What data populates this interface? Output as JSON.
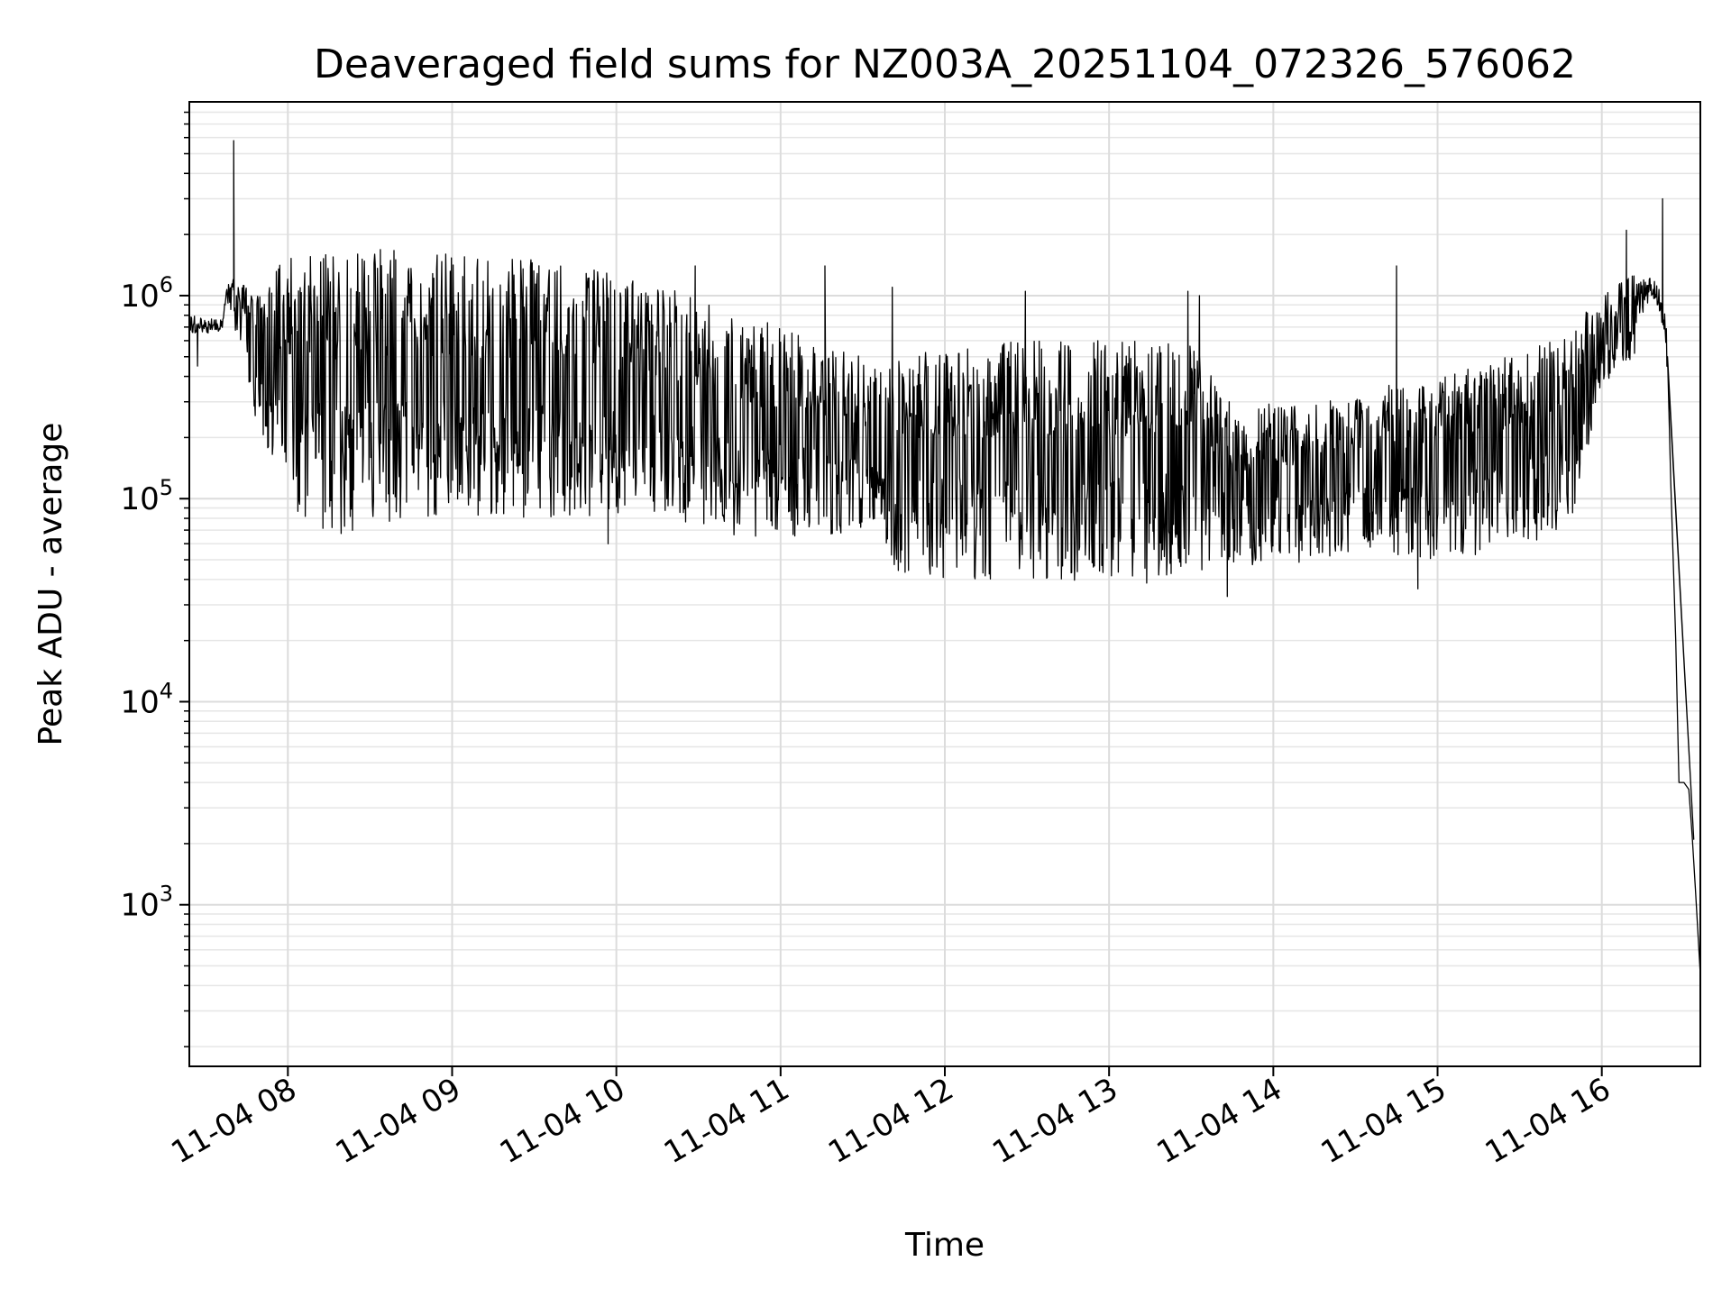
{
  "chart_data": {
    "type": "line",
    "title": "Deaveraged field sums for NZ003A_20251104_072326_576062",
    "xlabel": "Time",
    "ylabel": "Peak ADU - average",
    "yscale": "log",
    "xlim": [
      7.4,
      16.6
    ],
    "ylim": [
      160,
      9000000
    ],
    "grid": "major and minor",
    "x_ticks": [
      {
        "value": 8,
        "label": "11-04 08"
      },
      {
        "value": 9,
        "label": "11-04 09"
      },
      {
        "value": 10,
        "label": "11-04 10"
      },
      {
        "value": 11,
        "label": "11-04 11"
      },
      {
        "value": 12,
        "label": "11-04 12"
      },
      {
        "value": 13,
        "label": "11-04 13"
      },
      {
        "value": 14,
        "label": "11-04 14"
      },
      {
        "value": 15,
        "label": "11-04 15"
      },
      {
        "value": 16,
        "label": "11-04 16"
      }
    ],
    "y_ticks": [
      {
        "value": 1000,
        "base": "10",
        "exp": "3"
      },
      {
        "value": 10000,
        "base": "10",
        "exp": "4"
      },
      {
        "value": 100000,
        "base": "10",
        "exp": "5"
      },
      {
        "value": 1000000,
        "base": "10",
        "exp": "6"
      }
    ],
    "series": [
      {
        "name": "Peak ADU - average",
        "color": "#000000",
        "x_unit": "hour of day (2025-11-04)",
        "envelope": [
          {
            "x": 7.4,
            "low": 550000,
            "high": 850000
          },
          {
            "x": 7.6,
            "low": 600000,
            "high": 800000
          },
          {
            "x": 7.63,
            "low": 900000,
            "high": 1200000
          },
          {
            "x": 7.7,
            "low": 600000,
            "high": 1200000
          },
          {
            "x": 7.8,
            "low": 250000,
            "high": 1000000
          },
          {
            "x": 8.0,
            "low": 90000,
            "high": 1600000
          },
          {
            "x": 8.3,
            "low": 65000,
            "high": 1650000
          },
          {
            "x": 8.5,
            "low": 75000,
            "high": 1700000
          },
          {
            "x": 8.8,
            "low": 80000,
            "high": 1650000
          },
          {
            "x": 9.0,
            "low": 85000,
            "high": 1600000
          },
          {
            "x": 9.3,
            "low": 80000,
            "high": 1550000
          },
          {
            "x": 9.6,
            "low": 80000,
            "high": 1500000
          },
          {
            "x": 9.8,
            "low": 80000,
            "high": 1400000
          },
          {
            "x": 10.0,
            "low": 80000,
            "high": 1300000
          },
          {
            "x": 10.3,
            "low": 75000,
            "high": 1100000
          },
          {
            "x": 10.7,
            "low": 65000,
            "high": 850000
          },
          {
            "x": 11.0,
            "low": 65000,
            "high": 700000
          },
          {
            "x": 11.3,
            "low": 65000,
            "high": 600000
          },
          {
            "x": 11.6,
            "low": 75000,
            "high": 450000
          },
          {
            "x": 11.7,
            "low": 40000,
            "high": 500000
          },
          {
            "x": 12.0,
            "low": 40000,
            "high": 550000
          },
          {
            "x": 12.5,
            "low": 40000,
            "high": 600000
          },
          {
            "x": 12.9,
            "low": 36000,
            "high": 600000
          },
          {
            "x": 13.2,
            "low": 38000,
            "high": 600000
          },
          {
            "x": 13.5,
            "low": 40000,
            "high": 600000
          },
          {
            "x": 13.8,
            "low": 50000,
            "high": 250000
          },
          {
            "x": 14.0,
            "low": 42000,
            "high": 300000
          },
          {
            "x": 14.3,
            "low": 50000,
            "high": 300000
          },
          {
            "x": 14.6,
            "low": 55000,
            "high": 350000
          },
          {
            "x": 15.0,
            "low": 50000,
            "high": 400000
          },
          {
            "x": 15.4,
            "low": 55000,
            "high": 500000
          },
          {
            "x": 15.8,
            "low": 70000,
            "high": 700000
          },
          {
            "x": 16.0,
            "low": 350000,
            "high": 1000000
          },
          {
            "x": 16.2,
            "low": 500000,
            "high": 1300000
          },
          {
            "x": 16.3,
            "low": 800000,
            "high": 1400000
          },
          {
            "x": 16.35,
            "low": 700000,
            "high": 1200000
          },
          {
            "x": 16.4,
            "low": 300000,
            "high": 800000
          }
        ],
        "tail": [
          {
            "x": 16.4,
            "y": 500000
          },
          {
            "x": 16.42,
            "y": 120000
          },
          {
            "x": 16.45,
            "y": 20000
          },
          {
            "x": 16.47,
            "y": 4000
          },
          {
            "x": 16.5,
            "y": 4000
          },
          {
            "x": 16.53,
            "y": 3700
          },
          {
            "x": 16.55,
            "y": 2200
          },
          {
            "x": 16.57,
            "y": 1200
          },
          {
            "x": 16.6,
            "y": 450
          },
          {
            "x": 16.61,
            "y": 300
          }
        ],
        "spikes": [
          {
            "x": 7.67,
            "y": 5800000
          },
          {
            "x": 16.37,
            "y": 3000000
          },
          {
            "x": 16.15,
            "y": 2100000
          },
          {
            "x": 10.48,
            "y": 1400000
          },
          {
            "x": 9.48,
            "y": 1500000
          },
          {
            "x": 11.27,
            "y": 1400000
          },
          {
            "x": 11.68,
            "y": 1100000
          },
          {
            "x": 12.49,
            "y": 1050000
          },
          {
            "x": 13.48,
            "y": 1050000
          },
          {
            "x": 13.55,
            "y": 1000000
          },
          {
            "x": 14.75,
            "y": 1400000
          }
        ],
        "dips": [
          {
            "x": 7.45,
            "y": 450000
          },
          {
            "x": 9.95,
            "y": 60000
          },
          {
            "x": 13.72,
            "y": 33000
          },
          {
            "x": 14.88,
            "y": 36000
          },
          {
            "x": 16.56,
            "y": 2100
          }
        ]
      }
    ]
  }
}
